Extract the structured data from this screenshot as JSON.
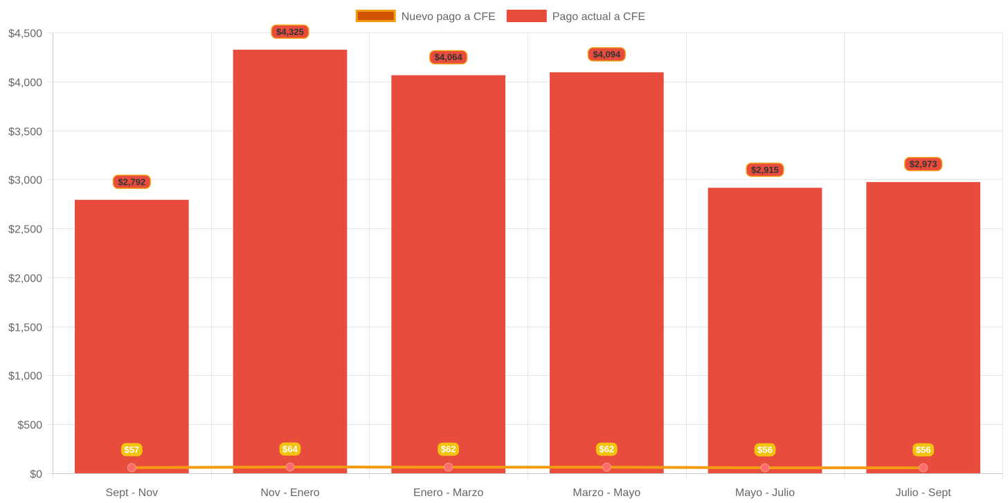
{
  "chart_data": {
    "type": "bar",
    "title": "",
    "xlabel": "",
    "ylabel": "",
    "categories": [
      "Sept - Nov",
      "Nov - Enero",
      "Enero - Marzo",
      "Marzo - Mayo",
      "Mayo - Julio",
      "Julio - Sept"
    ],
    "ylim": [
      0,
      4500
    ],
    "y_ticks": [
      0,
      500,
      1000,
      1500,
      2000,
      2500,
      3000,
      3500,
      4000,
      4500
    ],
    "y_tick_labels": [
      "$0",
      "$500",
      "$1,000",
      "$1,500",
      "$2,000",
      "$2,500",
      "$3,000",
      "$3,500",
      "$4,000",
      "$4,500"
    ],
    "grid": true,
    "legend_position": "top-center",
    "legend": [
      {
        "label": "Nuevo pago a CFE",
        "fill": "#d35400",
        "border": "#f39c12"
      },
      {
        "label": "Pago actual a CFE",
        "fill": "#e74c3c",
        "border": "#e74c3c"
      }
    ],
    "series": [
      {
        "name": "Pago actual a CFE",
        "type": "bar",
        "color": "#e74c3c",
        "values": [
          2792,
          4325,
          4064,
          4094,
          2915,
          2973
        ],
        "labels": [
          "$2,792",
          "$4,325",
          "$4,064",
          "$4,094",
          "$2,915",
          "$2,973"
        ],
        "label_fill": "#e74c3c",
        "label_border": "#f39c12",
        "label_text_color": "#333333"
      },
      {
        "name": "Nuevo pago a CFE",
        "type": "line",
        "color": "#f39c12",
        "point_color": "#ff6b6b",
        "values": [
          57,
          64,
          62,
          62,
          56,
          56
        ],
        "labels": [
          "$57",
          "$64",
          "$62",
          "$62",
          "$56",
          "$56"
        ],
        "label_fill": "#f1c40f",
        "label_text_color": "#ffffff"
      }
    ]
  },
  "colors": {
    "grid": "#e5e5e5",
    "axis": "#c8c8c8",
    "text": "#666666"
  }
}
